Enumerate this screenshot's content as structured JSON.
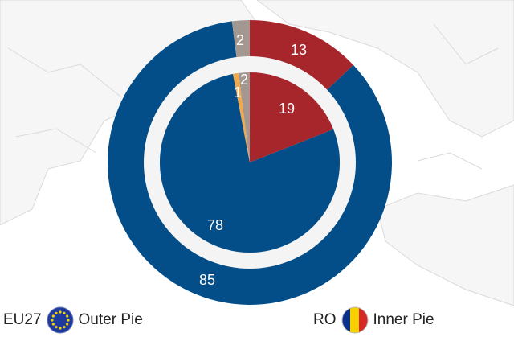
{
  "chart_data": {
    "type": "pie",
    "rings": [
      {
        "ring": "outer",
        "legend_code": "EU27",
        "legend_label": "Outer Pie",
        "slices": [
          {
            "value": 13,
            "label": "13",
            "color": "#A6262C"
          },
          {
            "value": 85,
            "label": "85",
            "color": "#034E89"
          },
          {
            "value": 2,
            "label": "2",
            "color": "#A39890"
          }
        ]
      },
      {
        "ring": "inner",
        "legend_code": "RO",
        "legend_label": "Inner Pie",
        "slices": [
          {
            "value": 19,
            "label": "19",
            "color": "#A6262C"
          },
          {
            "value": 78,
            "label": "78",
            "color": "#034E89"
          },
          {
            "value": 1,
            "label": "1",
            "color": "#F0A94E"
          },
          {
            "value": 2,
            "label": "2",
            "color": "#A39890"
          }
        ]
      }
    ],
    "legend_position": "bottom",
    "colors": {
      "map_background": "#F6F6F6",
      "map_lines": "#DADADA",
      "eu_flag_blue": "#1E3A9E",
      "eu_flag_star": "#F5D000",
      "ro_blue": "#0B2F8C",
      "ro_yellow": "#F8D000",
      "ro_red": "#D62828"
    }
  }
}
